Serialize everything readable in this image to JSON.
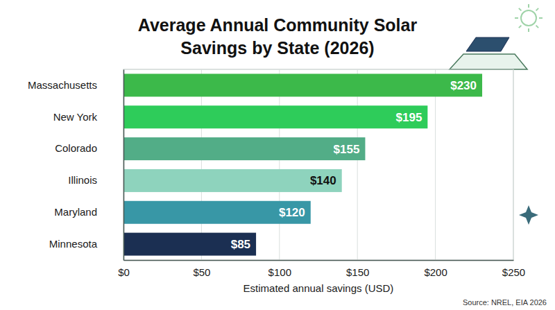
{
  "chart_data": {
    "type": "bar",
    "orientation": "horizontal",
    "title": "Average Annual Community Solar Savings by State (2026)",
    "categories": [
      "Massachusetts",
      "New York",
      "Colorado",
      "Illinois",
      "Maryland",
      "Minnesota"
    ],
    "values": [
      230,
      195,
      155,
      140,
      120,
      85
    ],
    "value_labels": [
      "$230",
      "$195",
      "$155",
      "$140",
      "$120",
      "$85"
    ],
    "colors": [
      "#3cb94a",
      "#2ecc5a",
      "#52ad87",
      "#8ed3bd",
      "#3897a6",
      "#1b2f52"
    ],
    "data_labels": true,
    "xlabel": "Estimated annual savings (USD)",
    "xlim": [
      0,
      250
    ],
    "xticks": [
      {
        "value": 0,
        "label": "$0"
      },
      {
        "value": 50,
        "label": "$50"
      },
      {
        "value": 100,
        "label": "$100"
      },
      {
        "value": 150,
        "label": "$150"
      },
      {
        "value": 200,
        "label": "$200"
      },
      {
        "value": 250,
        "label": "$250"
      }
    ],
    "grid": true,
    "source": "Source: NREL, EIA 2026"
  }
}
